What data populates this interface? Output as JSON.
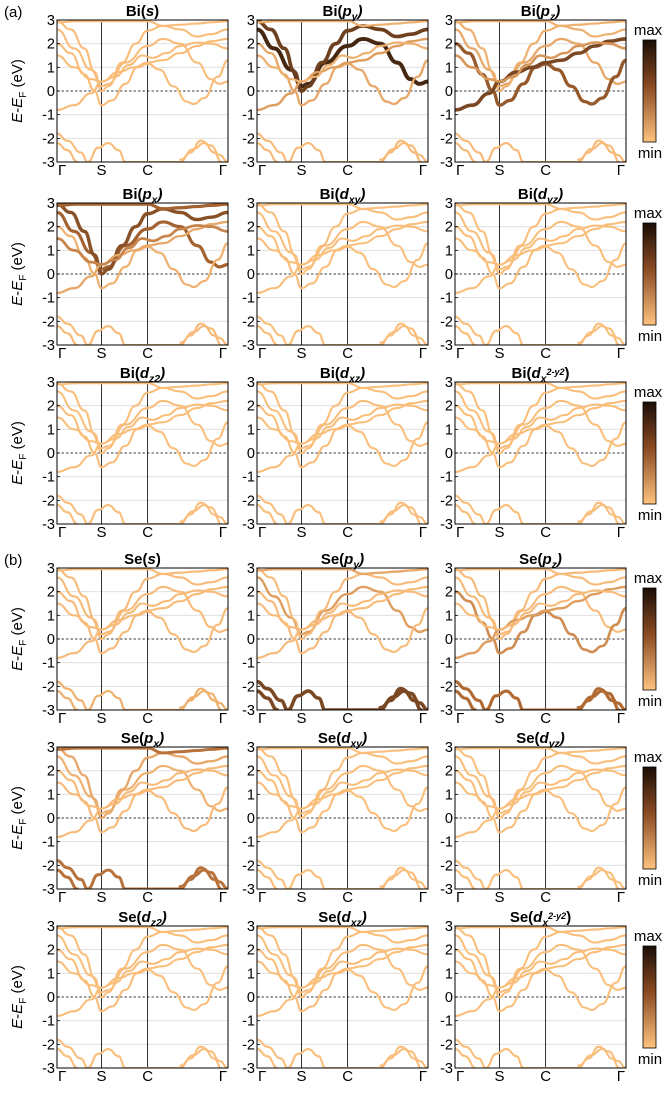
{
  "sections": [
    {
      "label": "(a)",
      "element": "Bi",
      "rows": [
        [
          {
            "orb": "s",
            "sub": "",
            "sup": "",
            "w": {
              "A": 0.04,
              "B": 0.04,
              "C": 0.04,
              "D": 0.04,
              "E": 0.04,
              "F": 0.04,
              "G": 0.04
            }
          },
          {
            "orb": "p",
            "sub": "y",
            "sup": "",
            "w": {
              "A": 0.9,
              "B": 0.75,
              "C": 0.15,
              "D": 0.2,
              "E": 0.1,
              "F": 0.1,
              "G": 0.05
            }
          },
          {
            "orb": "p",
            "sub": "z",
            "sup": "",
            "w": {
              "A": 0.15,
              "B": 0.1,
              "C": 0.6,
              "D": 0.7,
              "E": 0.1,
              "F": 0.25,
              "G": 0.05
            }
          }
        ],
        [
          {
            "orb": "p",
            "sub": "x",
            "sup": "",
            "w": {
              "A": 0.55,
              "B": 0.65,
              "C": 0.1,
              "D": 0.15,
              "E": 0.55,
              "F": 0.35,
              "G": 0.05
            }
          },
          {
            "orb": "d",
            "sub": "xy",
            "sup": "",
            "w": {
              "A": 0.03,
              "B": 0.03,
              "C": 0.03,
              "D": 0.03,
              "E": 0.03,
              "F": 0.03,
              "G": 0.03
            }
          },
          {
            "orb": "d",
            "sub": "yz",
            "sup": "",
            "w": {
              "A": 0.03,
              "B": 0.03,
              "C": 0.03,
              "D": 0.03,
              "E": 0.03,
              "F": 0.03,
              "G": 0.03
            }
          }
        ],
        [
          {
            "orb": "d",
            "sub": "z2",
            "sup": "",
            "w": {
              "A": 0.03,
              "B": 0.03,
              "C": 0.03,
              "D": 0.03,
              "E": 0.03,
              "F": 0.03,
              "G": 0.03
            }
          },
          {
            "orb": "d",
            "sub": "xz",
            "sup": "",
            "w": {
              "A": 0.03,
              "B": 0.03,
              "C": 0.03,
              "D": 0.03,
              "E": 0.03,
              "F": 0.03,
              "G": 0.03
            }
          },
          {
            "orb": "d",
            "sub": "x",
            "sup": "2-y2",
            "w": {
              "A": 0.03,
              "B": 0.03,
              "C": 0.03,
              "D": 0.03,
              "E": 0.03,
              "F": 0.03,
              "G": 0.03
            }
          }
        ]
      ]
    },
    {
      "label": "(b)",
      "element": "Se",
      "rows": [
        [
          {
            "orb": "s",
            "sub": "",
            "sup": "",
            "w": {
              "A": 0.05,
              "B": 0.05,
              "C": 0.05,
              "D": 0.05,
              "E": 0.05,
              "F": 0.05,
              "G": 0.1
            }
          },
          {
            "orb": "p",
            "sub": "y",
            "sup": "",
            "w": {
              "A": 0.2,
              "B": 0.05,
              "C": 0.05,
              "D": 0.05,
              "E": 0.15,
              "F": 0.05,
              "G": 0.7
            }
          },
          {
            "orb": "p",
            "sub": "z",
            "sup": "",
            "w": {
              "A": 0.05,
              "B": 0.05,
              "C": 0.3,
              "D": 0.2,
              "E": 0.05,
              "F": 0.05,
              "G": 0.5
            }
          }
        ],
        [
          {
            "orb": "p",
            "sub": "x",
            "sup": "",
            "w": {
              "A": 0.1,
              "B": 0.15,
              "C": 0.05,
              "D": 0.05,
              "E": 0.45,
              "F": 0.05,
              "G": 0.45
            }
          },
          {
            "orb": "d",
            "sub": "xy",
            "sup": "",
            "w": {
              "A": 0.03,
              "B": 0.03,
              "C": 0.03,
              "D": 0.03,
              "E": 0.03,
              "F": 0.03,
              "G": 0.03
            }
          },
          {
            "orb": "d",
            "sub": "yz",
            "sup": "",
            "w": {
              "A": 0.03,
              "B": 0.03,
              "C": 0.03,
              "D": 0.03,
              "E": 0.03,
              "F": 0.03,
              "G": 0.03
            }
          }
        ],
        [
          {
            "orb": "d",
            "sub": "z2",
            "sup": "",
            "w": {
              "A": 0.03,
              "B": 0.03,
              "C": 0.03,
              "D": 0.03,
              "E": 0.03,
              "F": 0.03,
              "G": 0.03
            }
          },
          {
            "orb": "d",
            "sub": "xz",
            "sup": "",
            "w": {
              "A": 0.03,
              "B": 0.03,
              "C": 0.03,
              "D": 0.03,
              "E": 0.03,
              "F": 0.03,
              "G": 0.03
            }
          },
          {
            "orb": "d",
            "sub": "x",
            "sup": "2-y2",
            "w": {
              "A": 0.03,
              "B": 0.03,
              "C": 0.03,
              "D": 0.03,
              "E": 0.03,
              "F": 0.03,
              "G": 0.03
            }
          }
        ]
      ]
    }
  ],
  "axis": {
    "ylabel_main": "E",
    "ylabel_dash": "-",
    "ylabel_sub_base": "E",
    "ylabel_sub": "F",
    "ylabel_unit": " (eV)",
    "ylim": [
      -3,
      3
    ],
    "yticks": [
      "3",
      "2",
      "1",
      "0",
      "-1",
      "-2",
      "-3"
    ],
    "xticks": [
      "Γ",
      "S",
      "C",
      "Γ"
    ],
    "kpath_positions": [
      0,
      0.26,
      0.53,
      1.0
    ]
  },
  "colorbar": {
    "max_label": "max",
    "min_label": "min",
    "color_max": "#1a0e06",
    "color_min": "#ffc37f"
  },
  "chart_data": {
    "type": "line",
    "description_of_x": "k-path Γ–S–C–Γ",
    "ylabel": "E-E_F (eV)",
    "ylim": [
      -3,
      3
    ],
    "bands": {
      "A": [
        [
          0,
          2.6
        ],
        [
          0.1,
          1.8
        ],
        [
          0.2,
          0.9
        ],
        [
          0.26,
          0.2
        ],
        [
          0.3,
          0.3
        ],
        [
          0.4,
          1.2
        ],
        [
          0.53,
          1.9
        ],
        [
          0.62,
          2.2
        ],
        [
          0.72,
          2.0
        ],
        [
          0.82,
          1.2
        ],
        [
          0.9,
          0.5
        ],
        [
          0.95,
          0.3
        ],
        [
          1.0,
          0.4
        ]
      ],
      "B": [
        [
          0,
          2.95
        ],
        [
          0.08,
          2.6
        ],
        [
          0.16,
          1.8
        ],
        [
          0.22,
          0.8
        ],
        [
          0.26,
          0.0
        ],
        [
          0.3,
          0.2
        ],
        [
          0.38,
          1.2
        ],
        [
          0.46,
          2.0
        ],
        [
          0.53,
          2.55
        ],
        [
          0.62,
          2.75
        ],
        [
          0.72,
          2.6
        ],
        [
          0.82,
          2.3
        ],
        [
          0.9,
          2.4
        ],
        [
          1.0,
          2.6
        ]
      ],
      "C": [
        [
          0,
          2.0
        ],
        [
          0.08,
          1.6
        ],
        [
          0.16,
          0.7
        ],
        [
          0.22,
          0.0
        ],
        [
          0.26,
          -0.6
        ],
        [
          0.32,
          -0.4
        ],
        [
          0.4,
          0.3
        ],
        [
          0.47,
          1.0
        ],
        [
          0.53,
          1.15
        ],
        [
          0.6,
          0.9
        ],
        [
          0.68,
          0.2
        ],
        [
          0.76,
          -0.45
        ],
        [
          0.8,
          -0.55
        ],
        [
          0.86,
          -0.3
        ],
        [
          0.94,
          0.6
        ],
        [
          1.0,
          1.3
        ]
      ],
      "D": [
        [
          0,
          -0.8
        ],
        [
          0.1,
          -0.6
        ],
        [
          0.2,
          -0.1
        ],
        [
          0.26,
          0.4
        ],
        [
          0.36,
          0.8
        ],
        [
          0.45,
          1.0
        ],
        [
          0.53,
          1.2
        ],
        [
          0.62,
          1.3
        ],
        [
          0.72,
          1.6
        ],
        [
          0.82,
          1.9
        ],
        [
          0.9,
          2.1
        ],
        [
          1.0,
          2.2
        ]
      ],
      "E": [
        [
          0,
          2.9
        ],
        [
          0.12,
          2.95
        ],
        [
          0.26,
          2.95
        ],
        [
          0.4,
          2.95
        ],
        [
          0.53,
          2.95
        ],
        [
          0.62,
          2.75
        ],
        [
          0.72,
          2.8
        ],
        [
          0.82,
          2.85
        ],
        [
          0.9,
          2.9
        ],
        [
          1.0,
          2.95
        ]
      ],
      "F": [
        [
          0,
          1.5
        ],
        [
          0.1,
          1.0
        ],
        [
          0.2,
          0.5
        ],
        [
          0.26,
          0.4
        ],
        [
          0.34,
          0.6
        ],
        [
          0.42,
          1.1
        ],
        [
          0.5,
          1.5
        ],
        [
          0.56,
          1.4
        ],
        [
          0.64,
          1.6
        ],
        [
          0.72,
          1.9
        ],
        [
          0.82,
          2.05
        ],
        [
          0.9,
          2.0
        ],
        [
          1.0,
          1.8
        ]
      ],
      "G": [
        [
          0,
          -1.8
        ],
        [
          0.06,
          -2.1
        ],
        [
          0.14,
          -2.6
        ],
        [
          0.18,
          -3.0
        ],
        [
          0.24,
          -2.4
        ],
        [
          0.3,
          -2.2
        ],
        [
          0.36,
          -2.5
        ],
        [
          0.4,
          -3.0
        ],
        [
          0.72,
          -3.0
        ],
        [
          0.78,
          -2.6
        ],
        [
          0.84,
          -2.1
        ],
        [
          0.9,
          -2.3
        ],
        [
          0.95,
          -2.7
        ],
        [
          1.0,
          -3.0
        ]
      ],
      "G2": [
        [
          0,
          -2.2
        ],
        [
          0.06,
          -2.5
        ],
        [
          0.12,
          -3.0
        ]
      ],
      "G3": [
        [
          0.72,
          -2.9
        ],
        [
          0.8,
          -2.45
        ],
        [
          0.86,
          -2.2
        ],
        [
          0.92,
          -2.6
        ],
        [
          0.96,
          -3.0
        ]
      ]
    }
  }
}
